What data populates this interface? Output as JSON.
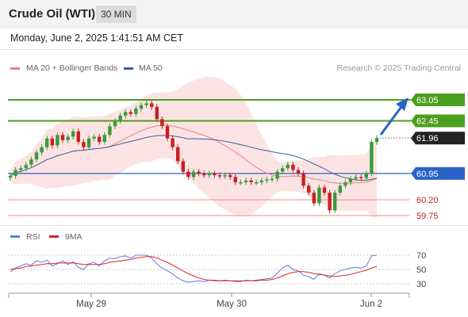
{
  "header": {
    "title": "Crude Oil (WTI)",
    "timeframe": "30 MIN",
    "datetime": "Monday, June 2, 2025 1:41:51 AM CET"
  },
  "legend": {
    "ma20": "MA 20 + Bollinger Bands",
    "ma50": "MA 50",
    "credit": "Research © 2025 Trading Central"
  },
  "rsi_legend": {
    "rsi": "RSI",
    "ma": "9MA"
  },
  "colors": {
    "ma20": "#f08080",
    "ma50": "#3a5fa0",
    "bands": "#fbd9d9",
    "green": "#4aa01e",
    "blue_level": "#2a62c8",
    "red_level": "#f5a0a0",
    "rsi": "#5b7fdb",
    "rsi_ma": "#e0202a",
    "up": "#3a9a3a",
    "down": "#c82020"
  },
  "chart_data": [
    {
      "type": "candlestick",
      "x_ticks": [
        "May 29",
        "May 30",
        "Jun 2"
      ],
      "ylim": [
        59.5,
        63.5
      ],
      "levels": [
        {
          "value": 63.05,
          "label": "63.05",
          "kind": "resistance"
        },
        {
          "value": 62.45,
          "label": "62.45",
          "kind": "resistance"
        },
        {
          "value": 61.96,
          "label": "61.96",
          "kind": "last"
        },
        {
          "value": 60.95,
          "label": "60.95",
          "kind": "pivot"
        },
        {
          "value": 60.2,
          "label": "60.20",
          "kind": "support"
        },
        {
          "value": 59.75,
          "label": "59.75",
          "kind": "support"
        }
      ],
      "close": [
        60.88,
        61.05,
        61.1,
        61.2,
        61.35,
        61.55,
        61.7,
        61.95,
        61.75,
        62.05,
        61.9,
        62.0,
        62.15,
        61.85,
        61.7,
        61.95,
        62.0,
        61.85,
        62.05,
        62.3,
        62.45,
        62.6,
        62.7,
        62.65,
        62.8,
        62.9,
        62.95,
        62.85,
        62.5,
        62.3,
        61.95,
        61.7,
        61.3,
        61.0,
        60.85,
        61.0,
        60.95,
        60.9,
        60.95,
        60.9,
        60.88,
        60.9,
        60.85,
        60.7,
        60.7,
        60.75,
        60.7,
        60.7,
        60.75,
        60.78,
        60.8,
        61.0,
        61.1,
        61.2,
        61.05,
        60.95,
        60.6,
        60.4,
        60.1,
        60.55,
        60.4,
        59.9,
        60.4,
        60.6,
        60.7,
        60.8,
        60.85,
        60.82,
        60.95,
        61.85,
        61.96
      ],
      "rsi": {
        "ylim": [
          20,
          80
        ],
        "ticks": [
          30,
          50,
          70
        ],
        "rsi": [
          47,
          52,
          55,
          58,
          56,
          62,
          60,
          63,
          55,
          58,
          62,
          57,
          61,
          53,
          50,
          58,
          60,
          55,
          62,
          66,
          65,
          68,
          69,
          66,
          70,
          70,
          70,
          66,
          58,
          52,
          48,
          44,
          38,
          34,
          32,
          33,
          34,
          33,
          35,
          35,
          34,
          35,
          34,
          33,
          33,
          35,
          34,
          35,
          36,
          37,
          38,
          45,
          52,
          56,
          50,
          48,
          42,
          40,
          36,
          44,
          42,
          38,
          44,
          48,
          50,
          52,
          53,
          52,
          55,
          69,
          70
        ],
        "ma": [
          50,
          51,
          52,
          54,
          55,
          56,
          57,
          58,
          58,
          59,
          59,
          59,
          59,
          58,
          57,
          57,
          57,
          57,
          58,
          60,
          61,
          62,
          63,
          64,
          66,
          67,
          68,
          68,
          66,
          63,
          60,
          56,
          52,
          48,
          44,
          41,
          38,
          36,
          35,
          34,
          34,
          34,
          34,
          34,
          34,
          34,
          34,
          34,
          35,
          35,
          36,
          38,
          41,
          44,
          46,
          47,
          47,
          46,
          44,
          43,
          42,
          41,
          40,
          41,
          42,
          43,
          45,
          47,
          49,
          52,
          54
        ]
      }
    }
  ]
}
